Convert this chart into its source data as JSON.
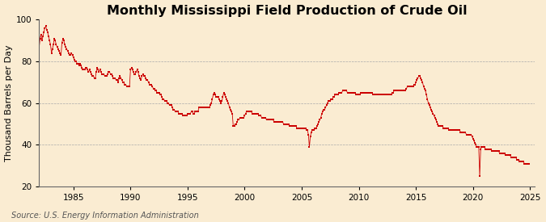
{
  "title": "Monthly Mississippi Field Production of Crude Oil",
  "ylabel": "Thousand Barrels per Day",
  "source": "Source: U.S. Energy Information Administration",
  "background_color": "#faecd2",
  "line_color": "#cc0000",
  "marker_color": "#cc0000",
  "grid_color": "#aaaaaa",
  "ylim": [
    20,
    100
  ],
  "yticks": [
    20,
    40,
    60,
    80,
    100
  ],
  "xtick_years": [
    1985,
    1990,
    1995,
    2000,
    2005,
    2010,
    2015,
    2020,
    2025
  ],
  "title_fontsize": 11.5,
  "label_fontsize": 8,
  "tick_fontsize": 7.5,
  "source_fontsize": 7,
  "data": {
    "1982-01": 87,
    "1982-02": 91,
    "1982-03": 93,
    "1982-04": 90,
    "1982-05": 92,
    "1982-06": 94,
    "1982-07": 96,
    "1982-08": 97,
    "1982-09": 95,
    "1982-10": 94,
    "1982-11": 92,
    "1982-12": 90,
    "1983-01": 88,
    "1983-02": 84,
    "1983-03": 86,
    "1983-04": 88,
    "1983-05": 91,
    "1983-06": 90,
    "1983-07": 88,
    "1983-08": 87,
    "1983-09": 86,
    "1983-10": 85,
    "1983-11": 84,
    "1983-12": 83,
    "1984-01": 89,
    "1984-02": 91,
    "1984-03": 90,
    "1984-04": 88,
    "1984-05": 87,
    "1984-06": 86,
    "1984-07": 85,
    "1984-08": 84,
    "1984-09": 83,
    "1984-10": 83,
    "1984-11": 84,
    "1984-12": 83,
    "1985-01": 82,
    "1985-02": 81,
    "1985-03": 80,
    "1985-04": 80,
    "1985-05": 79,
    "1985-06": 79,
    "1985-07": 78,
    "1985-08": 79,
    "1985-09": 78,
    "1985-10": 77,
    "1985-11": 76,
    "1985-12": 76,
    "1986-01": 76,
    "1986-02": 77,
    "1986-03": 77,
    "1986-04": 76,
    "1986-05": 75,
    "1986-06": 76,
    "1986-07": 75,
    "1986-08": 74,
    "1986-09": 73,
    "1986-10": 73,
    "1986-11": 72,
    "1986-12": 72,
    "1987-01": 75,
    "1987-02": 77,
    "1987-03": 76,
    "1987-04": 75,
    "1987-05": 76,
    "1987-06": 75,
    "1987-07": 74,
    "1987-08": 74,
    "1987-09": 74,
    "1987-10": 73,
    "1987-11": 73,
    "1987-12": 73,
    "1988-01": 74,
    "1988-02": 75,
    "1988-03": 75,
    "1988-04": 74,
    "1988-05": 74,
    "1988-06": 73,
    "1988-07": 72,
    "1988-08": 72,
    "1988-09": 72,
    "1988-10": 71,
    "1988-11": 71,
    "1988-12": 70,
    "1989-01": 72,
    "1989-02": 73,
    "1989-03": 72,
    "1989-04": 71,
    "1989-05": 70,
    "1989-06": 70,
    "1989-07": 69,
    "1989-08": 69,
    "1989-09": 68,
    "1989-10": 68,
    "1989-11": 68,
    "1989-12": 68,
    "1990-01": 76,
    "1990-02": 77,
    "1990-03": 76,
    "1990-04": 75,
    "1990-05": 74,
    "1990-06": 74,
    "1990-07": 75,
    "1990-08": 76,
    "1990-09": 75,
    "1990-10": 73,
    "1990-11": 72,
    "1990-12": 71,
    "1991-01": 73,
    "1991-02": 74,
    "1991-03": 73,
    "1991-04": 73,
    "1991-05": 72,
    "1991-06": 71,
    "1991-07": 71,
    "1991-08": 70,
    "1991-09": 69,
    "1991-10": 69,
    "1991-11": 69,
    "1991-12": 68,
    "1992-01": 67,
    "1992-02": 67,
    "1992-03": 66,
    "1992-04": 66,
    "1992-05": 65,
    "1992-06": 65,
    "1992-07": 65,
    "1992-08": 64,
    "1992-09": 64,
    "1992-10": 63,
    "1992-11": 62,
    "1992-12": 62,
    "1993-01": 61,
    "1993-02": 61,
    "1993-03": 61,
    "1993-04": 60,
    "1993-05": 60,
    "1993-06": 59,
    "1993-07": 59,
    "1993-08": 59,
    "1993-09": 58,
    "1993-10": 57,
    "1993-11": 57,
    "1993-12": 56,
    "1994-01": 56,
    "1994-02": 56,
    "1994-03": 56,
    "1994-04": 55,
    "1994-05": 55,
    "1994-06": 55,
    "1994-07": 55,
    "1994-08": 54,
    "1994-09": 54,
    "1994-10": 54,
    "1994-11": 54,
    "1994-12": 54,
    "1995-01": 55,
    "1995-02": 55,
    "1995-03": 55,
    "1995-04": 55,
    "1995-05": 56,
    "1995-06": 56,
    "1995-07": 55,
    "1995-08": 55,
    "1995-09": 56,
    "1995-10": 56,
    "1995-11": 56,
    "1995-12": 56,
    "1996-01": 58,
    "1996-02": 58,
    "1996-03": 58,
    "1996-04": 58,
    "1996-05": 58,
    "1996-06": 58,
    "1996-07": 58,
    "1996-08": 58,
    "1996-09": 58,
    "1996-10": 58,
    "1996-11": 58,
    "1996-12": 58,
    "1997-01": 59,
    "1997-02": 60,
    "1997-03": 62,
    "1997-04": 64,
    "1997-05": 65,
    "1997-06": 64,
    "1997-07": 63,
    "1997-08": 63,
    "1997-09": 63,
    "1997-10": 62,
    "1997-11": 61,
    "1997-12": 60,
    "1998-01": 61,
    "1998-02": 63,
    "1998-03": 65,
    "1998-04": 64,
    "1998-05": 63,
    "1998-06": 62,
    "1998-07": 61,
    "1998-08": 60,
    "1998-09": 58,
    "1998-10": 57,
    "1998-11": 56,
    "1998-12": 55,
    "1999-01": 49,
    "1999-02": 49,
    "1999-03": 50,
    "1999-04": 50,
    "1999-05": 51,
    "1999-06": 52,
    "1999-07": 52,
    "1999-08": 53,
    "1999-09": 53,
    "1999-10": 53,
    "1999-11": 53,
    "1999-12": 53,
    "2000-01": 54,
    "2000-02": 55,
    "2000-03": 56,
    "2000-04": 56,
    "2000-05": 56,
    "2000-06": 56,
    "2000-07": 56,
    "2000-08": 56,
    "2000-09": 55,
    "2000-10": 55,
    "2000-11": 55,
    "2000-12": 55,
    "2001-01": 55,
    "2001-02": 55,
    "2001-03": 55,
    "2001-04": 54,
    "2001-05": 54,
    "2001-06": 54,
    "2001-07": 53,
    "2001-08": 53,
    "2001-09": 53,
    "2001-10": 53,
    "2001-11": 53,
    "2001-12": 52,
    "2002-01": 52,
    "2002-02": 52,
    "2002-03": 52,
    "2002-04": 52,
    "2002-05": 52,
    "2002-06": 52,
    "2002-07": 52,
    "2002-08": 51,
    "2002-09": 51,
    "2002-10": 51,
    "2002-11": 51,
    "2002-12": 51,
    "2003-01": 51,
    "2003-02": 51,
    "2003-03": 51,
    "2003-04": 51,
    "2003-05": 51,
    "2003-06": 50,
    "2003-07": 50,
    "2003-08": 50,
    "2003-09": 50,
    "2003-10": 50,
    "2003-11": 50,
    "2003-12": 49,
    "2004-01": 49,
    "2004-02": 49,
    "2004-03": 49,
    "2004-04": 49,
    "2004-05": 49,
    "2004-06": 49,
    "2004-07": 49,
    "2004-08": 48,
    "2004-09": 48,
    "2004-10": 48,
    "2004-11": 48,
    "2004-12": 48,
    "2005-01": 48,
    "2005-02": 48,
    "2005-03": 48,
    "2005-04": 48,
    "2005-05": 48,
    "2005-06": 47,
    "2005-07": 47,
    "2005-08": 45,
    "2005-09": 39,
    "2005-10": 44,
    "2005-11": 46,
    "2005-12": 47,
    "2006-01": 47,
    "2006-02": 47,
    "2006-03": 48,
    "2006-04": 48,
    "2006-05": 49,
    "2006-06": 50,
    "2006-07": 51,
    "2006-08": 52,
    "2006-09": 53,
    "2006-10": 55,
    "2006-11": 56,
    "2006-12": 57,
    "2007-01": 57,
    "2007-02": 58,
    "2007-03": 59,
    "2007-04": 60,
    "2007-05": 61,
    "2007-06": 61,
    "2007-07": 61,
    "2007-08": 62,
    "2007-09": 62,
    "2007-10": 63,
    "2007-11": 63,
    "2007-12": 64,
    "2008-01": 64,
    "2008-02": 64,
    "2008-03": 64,
    "2008-04": 65,
    "2008-05": 65,
    "2008-06": 65,
    "2008-07": 65,
    "2008-08": 66,
    "2008-09": 66,
    "2008-10": 66,
    "2008-11": 66,
    "2008-12": 66,
    "2009-01": 65,
    "2009-02": 65,
    "2009-03": 65,
    "2009-04": 65,
    "2009-05": 65,
    "2009-06": 65,
    "2009-07": 65,
    "2009-08": 65,
    "2009-09": 65,
    "2009-10": 64,
    "2009-11": 64,
    "2009-12": 64,
    "2010-01": 64,
    "2010-02": 64,
    "2010-03": 65,
    "2010-04": 65,
    "2010-05": 65,
    "2010-06": 65,
    "2010-07": 65,
    "2010-08": 65,
    "2010-09": 65,
    "2010-10": 65,
    "2010-11": 65,
    "2010-12": 65,
    "2011-01": 65,
    "2011-02": 65,
    "2011-03": 65,
    "2011-04": 64,
    "2011-05": 64,
    "2011-06": 64,
    "2011-07": 64,
    "2011-08": 64,
    "2011-09": 64,
    "2011-10": 64,
    "2011-11": 64,
    "2011-12": 64,
    "2012-01": 64,
    "2012-02": 64,
    "2012-03": 64,
    "2012-04": 64,
    "2012-05": 64,
    "2012-06": 64,
    "2012-07": 64,
    "2012-08": 64,
    "2012-09": 64,
    "2012-10": 64,
    "2012-11": 64,
    "2012-12": 65,
    "2013-01": 65,
    "2013-02": 66,
    "2013-03": 66,
    "2013-04": 66,
    "2013-05": 66,
    "2013-06": 66,
    "2013-07": 66,
    "2013-08": 66,
    "2013-09": 66,
    "2013-10": 66,
    "2013-11": 66,
    "2013-12": 66,
    "2014-01": 66,
    "2014-02": 66,
    "2014-03": 67,
    "2014-04": 68,
    "2014-05": 68,
    "2014-06": 68,
    "2014-07": 68,
    "2014-08": 68,
    "2014-09": 68,
    "2014-10": 68,
    "2014-11": 69,
    "2014-12": 69,
    "2015-01": 70,
    "2015-02": 71,
    "2015-03": 72,
    "2015-04": 73,
    "2015-05": 73,
    "2015-06": 72,
    "2015-07": 71,
    "2015-08": 70,
    "2015-09": 68,
    "2015-10": 67,
    "2015-11": 66,
    "2015-12": 64,
    "2016-01": 62,
    "2016-02": 60,
    "2016-03": 59,
    "2016-04": 58,
    "2016-05": 57,
    "2016-06": 56,
    "2016-07": 55,
    "2016-08": 54,
    "2016-09": 53,
    "2016-10": 52,
    "2016-11": 51,
    "2016-12": 50,
    "2017-01": 49,
    "2017-02": 49,
    "2017-03": 49,
    "2017-04": 49,
    "2017-05": 49,
    "2017-06": 48,
    "2017-07": 48,
    "2017-08": 48,
    "2017-09": 48,
    "2017-10": 48,
    "2017-11": 48,
    "2017-12": 47,
    "2018-01": 47,
    "2018-02": 47,
    "2018-03": 47,
    "2018-04": 47,
    "2018-05": 47,
    "2018-06": 47,
    "2018-07": 47,
    "2018-08": 47,
    "2018-09": 47,
    "2018-10": 47,
    "2018-11": 47,
    "2018-12": 46,
    "2019-01": 46,
    "2019-02": 46,
    "2019-03": 46,
    "2019-04": 46,
    "2019-05": 46,
    "2019-06": 45,
    "2019-07": 45,
    "2019-08": 45,
    "2019-09": 45,
    "2019-10": 45,
    "2019-11": 45,
    "2019-12": 44,
    "2020-01": 43,
    "2020-02": 42,
    "2020-03": 41,
    "2020-04": 40,
    "2020-05": 39,
    "2020-06": 39,
    "2020-07": 39,
    "2020-08": 25,
    "2020-09": 38,
    "2020-10": 39,
    "2020-11": 39,
    "2020-12": 39,
    "2021-01": 39,
    "2021-02": 38,
    "2021-03": 38,
    "2021-04": 38,
    "2021-05": 38,
    "2021-06": 38,
    "2021-07": 38,
    "2021-08": 38,
    "2021-09": 37,
    "2021-10": 37,
    "2021-11": 37,
    "2021-12": 37,
    "2022-01": 37,
    "2022-02": 37,
    "2022-03": 37,
    "2022-04": 37,
    "2022-05": 36,
    "2022-06": 36,
    "2022-07": 36,
    "2022-08": 36,
    "2022-09": 36,
    "2022-10": 36,
    "2022-11": 35,
    "2022-12": 35,
    "2023-01": 35,
    "2023-02": 35,
    "2023-03": 35,
    "2023-04": 35,
    "2023-05": 34,
    "2023-06": 34,
    "2023-07": 34,
    "2023-08": 34,
    "2023-09": 34,
    "2023-10": 34,
    "2023-11": 33,
    "2023-12": 33,
    "2024-01": 33,
    "2024-02": 32,
    "2024-03": 32,
    "2024-04": 32,
    "2024-05": 32,
    "2024-06": 32,
    "2024-07": 31,
    "2024-08": 31,
    "2024-09": 31,
    "2024-10": 31,
    "2024-11": 31,
    "2024-12": 31
  }
}
